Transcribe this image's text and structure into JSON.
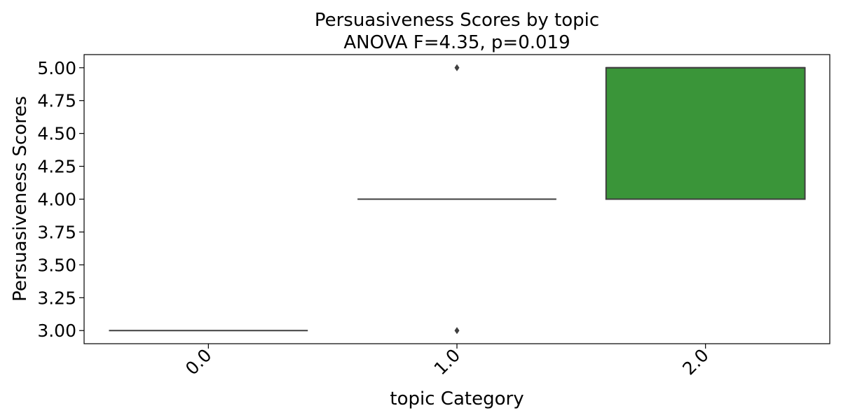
{
  "chart_data": {
    "type": "box",
    "title": "Persuasiveness Scores by topic",
    "subtitle": "ANOVA F=4.35, p=0.019",
    "xlabel": "topic Category",
    "ylabel": "Persuasiveness Scores",
    "ylim": [
      2.9,
      5.1
    ],
    "yticks": [
      "3.00",
      "3.25",
      "3.50",
      "3.75",
      "4.00",
      "4.25",
      "4.50",
      "4.75",
      "5.00"
    ],
    "categories": [
      "0.0",
      "1.0",
      "2.0"
    ],
    "boxes": [
      {
        "category": "0.0",
        "q1": 3.0,
        "median": 3.0,
        "q3": 3.0,
        "whisker_low": 3.0,
        "whisker_high": 3.0,
        "outliers": [],
        "color": "#1f77b4"
      },
      {
        "category": "1.0",
        "q1": 4.0,
        "median": 4.0,
        "q3": 4.0,
        "whisker_low": 4.0,
        "whisker_high": 4.0,
        "outliers": [
          3.0,
          5.0
        ],
        "color": "#ff7f0e"
      },
      {
        "category": "2.0",
        "q1": 4.0,
        "median": 5.0,
        "q3": 5.0,
        "whisker_low": 4.0,
        "whisker_high": 5.0,
        "outliers": [],
        "color": "#3a9539"
      }
    ],
    "grid": false,
    "legend": "none"
  }
}
